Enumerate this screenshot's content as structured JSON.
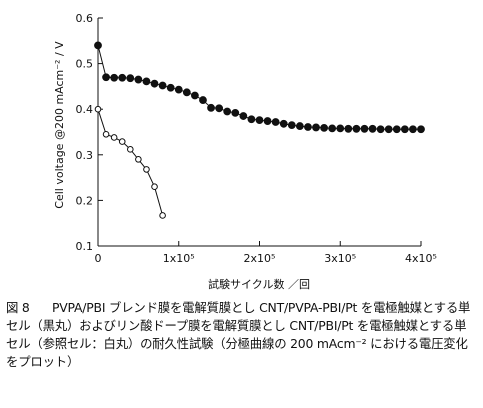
{
  "figure": {
    "number": "図 8",
    "caption": "PVPA/PBI ブレンド膜を電解質膜とし CNT/PVPA-PBI/Pt を電極触媒とする単セル（黒丸）およびリン酸ドープ膜を電解質膜とし CNT/PBI/Pt を電極触媒とする単セル（参照セル：白丸）の耐久性試験（分極曲線の 200 mAcm⁻² における電圧変化をプロット）"
  },
  "chart_data": {
    "type": "line",
    "title": "",
    "xlabel": "試験サイクル数 ／回",
    "ylabel": "Cell voltage @200 mAcm⁻² / V",
    "xlim": [
      0,
      400000
    ],
    "ylim": [
      0.1,
      0.6
    ],
    "x_ticks": [
      0,
      100000,
      200000,
      300000,
      400000
    ],
    "x_tick_labels": [
      "0",
      "1x10⁵",
      "2x10⁵",
      "3x10⁵",
      "4x10⁵"
    ],
    "y_ticks": [
      0.1,
      0.2,
      0.3,
      0.4,
      0.5,
      0.6
    ],
    "y_tick_labels": [
      "0.1",
      "0.2",
      "0.3",
      "0.4",
      "0.5",
      "0.6"
    ],
    "grid": false,
    "legend": "none",
    "series": [
      {
        "marker": "filled-circle",
        "color": "#111111",
        "x": [
          0,
          10000,
          20000,
          30000,
          40000,
          50000,
          60000,
          70000,
          80000,
          90000,
          100000,
          110000,
          120000,
          130000,
          140000,
          150000,
          160000,
          170000,
          180000,
          190000,
          200000,
          210000,
          220000,
          230000,
          240000,
          250000,
          260000,
          270000,
          280000,
          290000,
          300000,
          310000,
          320000,
          330000,
          340000,
          350000,
          360000,
          370000,
          380000,
          390000,
          400000
        ],
        "y": [
          0.54,
          0.47,
          0.469,
          0.469,
          0.468,
          0.465,
          0.461,
          0.456,
          0.452,
          0.447,
          0.443,
          0.437,
          0.43,
          0.42,
          0.403,
          0.402,
          0.395,
          0.392,
          0.385,
          0.378,
          0.376,
          0.374,
          0.372,
          0.368,
          0.365,
          0.363,
          0.361,
          0.36,
          0.359,
          0.358,
          0.358,
          0.357,
          0.357,
          0.357,
          0.357,
          0.356,
          0.356,
          0.356,
          0.356,
          0.356,
          0.356
        ]
      },
      {
        "marker": "open-circle",
        "color": "#111111",
        "x": [
          0,
          10000,
          20000,
          30000,
          40000,
          50000,
          60000,
          70000,
          80000
        ],
        "y": [
          0.4,
          0.345,
          0.338,
          0.329,
          0.312,
          0.29,
          0.268,
          0.23,
          0.167
        ]
      }
    ]
  }
}
